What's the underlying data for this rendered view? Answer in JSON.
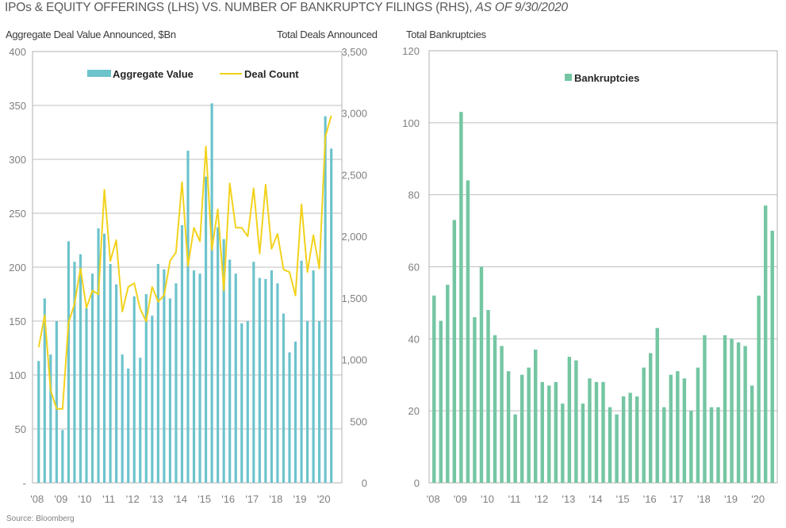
{
  "page": {
    "title_main": "IPOs & EQUITY OFFERINGS (LHS) VS. NUMBER OF BANKRUPTCY FILINGS (RHS),",
    "title_italic": "AS OF 9/30/2020",
    "source": "Source: Bloomberg"
  },
  "colors": {
    "aggregate_value": "#6cc3cc",
    "deal_count": "#f2d21c",
    "bankruptcies": "#74c6a2",
    "grid": "#bfbfbf"
  },
  "chart_data": [
    {
      "type": "bar",
      "title": "IPOs & Equity Offerings",
      "ylabel": "Aggregate Deal Value Announced, $Bn",
      "y2label": "Total Deals Announced",
      "ylim": [
        0,
        400
      ],
      "y2lim": [
        0,
        3500
      ],
      "yticks": [
        "-",
        "50",
        "100",
        "150",
        "200",
        "250",
        "300",
        "350",
        "400"
      ],
      "y2ticks": [
        "0",
        "500",
        "1,000",
        "1,500",
        "2,000",
        "2,500",
        "3,000",
        "3,500"
      ],
      "xtick_labels": [
        "'08",
        "'09",
        "'10",
        "'11",
        "'12",
        "'13",
        "'14",
        "'15",
        "'16",
        "'17",
        "'18",
        "'19",
        "'20"
      ],
      "grid": true,
      "legend_position": "top-center",
      "series": [
        {
          "name": "Aggregate Value",
          "kind": "bar",
          "axis": "left",
          "values": [
            113,
            171,
            119,
            150,
            49,
            224,
            205,
            212,
            162,
            194,
            236,
            231,
            203,
            184,
            119,
            106,
            173,
            116,
            175,
            155,
            203,
            198,
            171,
            185,
            239,
            308,
            197,
            194,
            284,
            352,
            237,
            226,
            207,
            194,
            148,
            150,
            205,
            190,
            189,
            197,
            185,
            157,
            121,
            131,
            206,
            150,
            197,
            150,
            340,
            310
          ]
        },
        {
          "name": "Deal Count",
          "kind": "line",
          "axis": "right",
          "values": [
            1100,
            1360,
            750,
            600,
            600,
            1300,
            1450,
            1740,
            1420,
            1560,
            1530,
            2380,
            1800,
            1970,
            1390,
            1590,
            1620,
            1410,
            1310,
            1590,
            1470,
            1520,
            1800,
            1870,
            2440,
            1760,
            2070,
            1960,
            2730,
            1890,
            2220,
            1560,
            2430,
            2070,
            2070,
            2000,
            2390,
            1860,
            2420,
            1900,
            2020,
            1730,
            1710,
            1520,
            2260,
            1710,
            2010,
            1740,
            2810,
            2980
          ]
        }
      ]
    },
    {
      "type": "bar",
      "title": "Bankruptcies",
      "ylabel": "Total Bankruptcies",
      "ylim": [
        0,
        120
      ],
      "yticks": [
        "0",
        "20",
        "40",
        "60",
        "80",
        "100",
        "120"
      ],
      "xtick_labels": [
        "'08",
        "'09",
        "'10",
        "'11",
        "'12",
        "'13",
        "'14",
        "'15",
        "'16",
        "'17",
        "'18",
        "'19",
        "'20"
      ],
      "grid": true,
      "legend_position": "top-center",
      "series": [
        {
          "name": "Bankruptcies",
          "values": [
            52,
            45,
            55,
            73,
            103,
            84,
            46,
            60,
            48,
            41,
            38,
            31,
            19,
            30,
            32,
            37,
            28,
            27,
            28,
            22,
            35,
            34,
            22,
            29,
            28,
            28,
            21,
            19,
            24,
            25,
            24,
            32,
            36,
            43,
            21,
            30,
            31,
            29,
            20,
            32,
            41,
            21,
            21,
            41,
            40,
            39,
            38,
            27,
            52,
            77,
            70
          ]
        }
      ]
    }
  ]
}
